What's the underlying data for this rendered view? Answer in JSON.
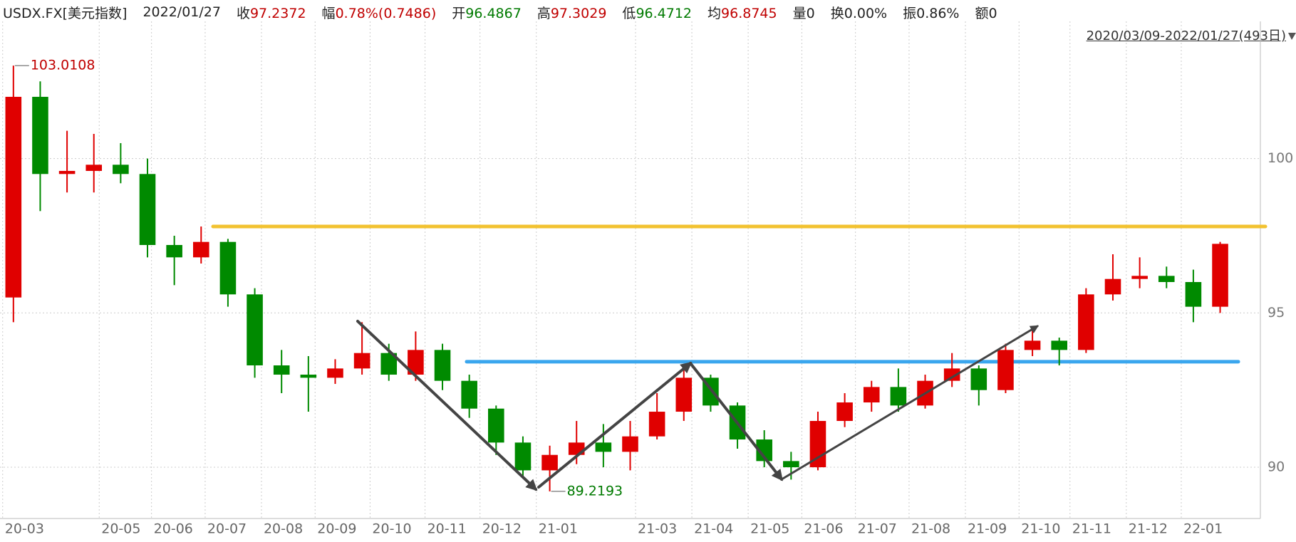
{
  "header": {
    "symbol": "USDX.FX[美元指数]",
    "date": "2022/01/27",
    "fields": [
      {
        "label": "收",
        "value": "97.2372",
        "color": "#c00000"
      },
      {
        "label": "幅",
        "value": "0.78%(0.7486)",
        "color": "#c00000"
      },
      {
        "label": "开",
        "value": "96.4867",
        "color": "#007a00"
      },
      {
        "label": "高",
        "value": "97.3029",
        "color": "#c00000"
      },
      {
        "label": "低",
        "value": "96.4712",
        "color": "#007a00"
      },
      {
        "label": "均",
        "value": "96.8745",
        "color": "#c00000"
      },
      {
        "label": "量",
        "value": "0",
        "color": "#222222"
      },
      {
        "label": "换",
        "value": "0.00%",
        "color": "#222222"
      },
      {
        "label": "振",
        "value": "0.86%",
        "color": "#222222"
      },
      {
        "label": "额",
        "value": "0",
        "color": "#222222"
      }
    ],
    "range": "2020/03/09-2022/01/27(493日)"
  },
  "chart_data": {
    "type": "candlestick",
    "up_color": "#e00000",
    "down_color": "#008a00",
    "open": [
      95.5,
      102.0,
      99.5,
      99.6,
      99.8,
      99.5,
      97.2,
      96.8,
      97.3,
      95.6,
      93.3,
      93.0,
      92.9,
      93.2,
      93.7,
      93.0,
      93.8,
      92.8,
      91.9,
      90.8,
      89.9,
      90.4,
      90.8,
      90.5,
      91.0,
      91.8,
      92.9,
      92.0,
      90.9,
      90.2,
      90.0,
      91.5,
      92.1,
      92.6,
      92.0,
      92.8,
      93.2,
      92.5,
      93.8,
      94.1,
      93.8,
      95.6,
      96.1,
      96.2,
      96.0,
      95.2
    ],
    "high": [
      103.0108,
      102.5,
      100.9,
      100.8,
      100.5,
      100.0,
      97.5,
      97.8,
      97.4,
      95.8,
      93.8,
      93.6,
      93.5,
      94.7,
      94.0,
      94.4,
      94.0,
      93.0,
      92.0,
      91.0,
      90.7,
      91.5,
      91.4,
      91.5,
      92.4,
      93.3,
      93.0,
      92.1,
      91.2,
      90.5,
      91.8,
      92.4,
      92.8,
      93.2,
      93.0,
      93.7,
      93.3,
      94.0,
      94.5,
      94.2,
      95.8,
      96.9,
      96.8,
      96.5,
      96.4,
      97.3
    ],
    "low": [
      94.7,
      98.3,
      98.9,
      98.9,
      99.2,
      96.8,
      95.9,
      96.6,
      95.2,
      92.9,
      92.4,
      91.8,
      92.7,
      93.0,
      92.8,
      92.8,
      92.5,
      91.6,
      90.4,
      89.7,
      89.2193,
      90.1,
      90.0,
      89.9,
      90.9,
      91.5,
      91.8,
      90.6,
      90.0,
      89.6,
      89.9,
      91.3,
      91.8,
      91.8,
      91.9,
      92.6,
      92.0,
      92.4,
      93.6,
      93.3,
      93.7,
      95.4,
      95.8,
      95.8,
      94.7,
      95.0
    ],
    "close": [
      102.0,
      99.5,
      99.6,
      99.8,
      99.5,
      97.2,
      96.8,
      97.3,
      95.6,
      93.3,
      93.0,
      92.9,
      93.2,
      93.7,
      93.0,
      93.8,
      92.8,
      91.9,
      90.8,
      89.9,
      90.4,
      90.8,
      90.5,
      91.0,
      91.8,
      92.9,
      92.0,
      90.9,
      90.2,
      90.0,
      91.5,
      92.1,
      92.6,
      92.0,
      92.8,
      93.2,
      92.5,
      93.8,
      94.1,
      93.8,
      95.6,
      96.1,
      96.2,
      96.0,
      95.2,
      97.2372
    ],
    "high_label": 103.0108,
    "low_label": 89.2193,
    "levels": [
      {
        "value": 97.8,
        "color": "#f2c230"
      },
      {
        "value": 93.42,
        "color": "#3aa6ee"
      }
    ],
    "xlim": [
      0,
      47
    ],
    "xticks": [
      {
        "value": 0.1,
        "label": "20-03"
      },
      {
        "value": 3.7,
        "label": "20-05"
      },
      {
        "value": 5.65,
        "label": "20-06"
      },
      {
        "value": 7.65,
        "label": "20-07"
      },
      {
        "value": 9.75,
        "label": "20-08"
      },
      {
        "value": 11.75,
        "label": "20-09"
      },
      {
        "value": 13.8,
        "label": "20-10"
      },
      {
        "value": 15.85,
        "label": "20-11"
      },
      {
        "value": 17.9,
        "label": "20-12"
      },
      {
        "value": 20.0,
        "label": "21-01"
      },
      {
        "value": 23.7,
        "label": "21-03"
      },
      {
        "value": 25.8,
        "label": "21-04"
      },
      {
        "value": 27.9,
        "label": "21-05"
      },
      {
        "value": 29.9,
        "label": "21-06"
      },
      {
        "value": 31.9,
        "label": "21-07"
      },
      {
        "value": 33.9,
        "label": "21-08"
      },
      {
        "value": 36.0,
        "label": "21-09"
      },
      {
        "value": 38.0,
        "label": "21-10"
      },
      {
        "value": 39.9,
        "label": "21-11"
      },
      {
        "value": 42.0,
        "label": "21-12"
      },
      {
        "value": 44.05,
        "label": "22-01"
      }
    ],
    "ylim": [
      88.34,
      103.66
    ],
    "yticks": [
      90,
      95,
      100
    ],
    "grid": true
  }
}
